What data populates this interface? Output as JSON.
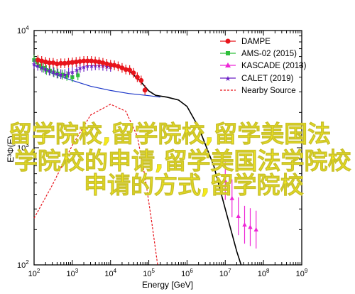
{
  "chart_data": {
    "type": "scatter",
    "xlabel": "Energy [GeV]",
    "ylabel": "E³Φ(E)",
    "xscale": "log",
    "yscale": "log",
    "xlim": [
      100,
      1000000000
    ],
    "ylim": [
      100,
      10000
    ],
    "x_ticks": [
      {
        "value": 100,
        "base": "10",
        "exp": "2"
      },
      {
        "value": 1000,
        "base": "10",
        "exp": "3"
      },
      {
        "value": 10000,
        "base": "10",
        "exp": "4"
      },
      {
        "value": 100000,
        "base": "10",
        "exp": "5"
      },
      {
        "value": 1000000,
        "base": "10",
        "exp": "6"
      },
      {
        "value": 10000000,
        "base": "10",
        "exp": "7"
      },
      {
        "value": 100000000,
        "base": "10",
        "exp": "8"
      },
      {
        "value": 1000000000,
        "base": "10",
        "exp": "9"
      }
    ],
    "y_ticks": [
      {
        "value": 100,
        "base": "10",
        "exp": "2"
      },
      {
        "value": 1000,
        "base": "10",
        "exp": "3"
      },
      {
        "value": 10000,
        "base": "10",
        "exp": "4"
      }
    ],
    "legend_position": "top-right",
    "series": [
      {
        "name": "DAMPE",
        "color": "#e8141b",
        "marker": "circle",
        "style": "markers",
        "points": [
          [
            126,
            5600
          ],
          [
            158,
            5500
          ],
          [
            200,
            5400
          ],
          [
            251,
            5300
          ],
          [
            316,
            5300
          ],
          [
            398,
            5200
          ],
          [
            501,
            5250
          ],
          [
            631,
            5250
          ],
          [
            794,
            5300
          ],
          [
            1000,
            5350
          ],
          [
            1260,
            5400
          ],
          [
            1580,
            5450
          ],
          [
            2000,
            5500
          ],
          [
            2510,
            5500
          ],
          [
            3160,
            5500
          ],
          [
            3980,
            5450
          ],
          [
            5010,
            5400
          ],
          [
            6310,
            5300
          ],
          [
            7940,
            5200
          ],
          [
            10000,
            5100
          ],
          [
            12600,
            5050
          ],
          [
            15800,
            4950
          ],
          [
            20000,
            4800
          ],
          [
            25100,
            4650
          ],
          [
            31600,
            4600
          ],
          [
            39800,
            4350
          ],
          [
            50100,
            4000
          ],
          [
            63100,
            3750
          ],
          [
            79400,
            3100
          ]
        ]
      },
      {
        "name": "AMS-02 (2015)",
        "color": "#2dbf3a",
        "marker": "square",
        "style": "markers",
        "points": [
          [
            100,
            5600
          ],
          [
            120,
            5350
          ],
          [
            145,
            5000
          ],
          [
            175,
            4800
          ],
          [
            210,
            4600
          ],
          [
            260,
            4550
          ],
          [
            330,
            4400
          ],
          [
            420,
            4300
          ],
          [
            550,
            4200
          ],
          [
            720,
            4100
          ],
          [
            1000,
            4000
          ],
          [
            1400,
            4150
          ]
        ]
      },
      {
        "name": "KASCADE (2013)",
        "color": "#ee26d6",
        "marker": "triangle",
        "style": "markers",
        "points": [
          [
            10000000,
            520
          ],
          [
            15000000,
            370
          ],
          [
            22000000,
            260
          ],
          [
            32000000,
            220
          ],
          [
            45000000,
            210
          ],
          [
            64000000,
            200
          ]
        ]
      },
      {
        "name": "CALET (2019)",
        "color": "#6b1fc4",
        "marker": "star",
        "style": "markers",
        "points": [
          [
            100,
            5200
          ],
          [
            125,
            5000
          ],
          [
            160,
            4850
          ],
          [
            200,
            4700
          ],
          [
            250,
            4550
          ],
          [
            320,
            4450
          ],
          [
            400,
            4300
          ],
          [
            500,
            4250
          ],
          [
            640,
            4250
          ],
          [
            800,
            4350
          ],
          [
            1000,
            4450
          ],
          [
            1300,
            4650
          ],
          [
            1600,
            4800
          ],
          [
            2000,
            4900
          ],
          [
            2500,
            5000
          ],
          [
            3200,
            5000
          ],
          [
            4000,
            5050
          ],
          [
            5000,
            5050
          ],
          [
            6300,
            5000
          ],
          [
            8000,
            4950
          ],
          [
            10000,
            4900
          ]
        ]
      },
      {
        "name": "Nearby Source",
        "color": "#e8141b",
        "style": "dashed",
        "points": [
          [
            100,
            250
          ],
          [
            300,
            480
          ],
          [
            1000,
            1050
          ],
          [
            3000,
            1900
          ],
          [
            10000,
            2350
          ],
          [
            25000,
            2050
          ],
          [
            50000,
            1250
          ],
          [
            80000,
            560
          ],
          [
            120000,
            230
          ],
          [
            170000,
            100
          ]
        ]
      },
      {
        "name": "",
        "color": "#1a35c8",
        "style": "solid",
        "points": [
          [
            100,
            5050
          ],
          [
            300,
            4300
          ],
          [
            1000,
            3750
          ],
          [
            3000,
            3350
          ],
          [
            10000,
            3080
          ],
          [
            30000,
            2900
          ],
          [
            100000,
            2780
          ],
          [
            200000,
            2700
          ]
        ]
      },
      {
        "name": "",
        "color": "#000000",
        "style": "solid",
        "points": [
          [
            100,
            5500
          ],
          [
            200,
            5400
          ],
          [
            500,
            5300
          ],
          [
            1000,
            5350
          ],
          [
            2000,
            5450
          ],
          [
            4000,
            5450
          ],
          [
            8000,
            5250
          ],
          [
            15000,
            4950
          ],
          [
            30000,
            4550
          ],
          [
            60000,
            3700
          ],
          [
            100000,
            3050
          ],
          [
            150000,
            2800
          ],
          [
            300000,
            2700
          ],
          [
            600000,
            2550
          ],
          [
            1000000,
            2250
          ],
          [
            2000000,
            1500
          ],
          [
            5000000,
            700
          ],
          [
            10000000,
            300
          ],
          [
            20000000,
            130
          ],
          [
            26000000,
            100
          ]
        ]
      }
    ],
    "overlay_text": [
      "留学院校,留学院校,留学美国法",
      "学院校的申请,留学美国法学院校",
      "申请的方式,留学院校"
    ]
  }
}
